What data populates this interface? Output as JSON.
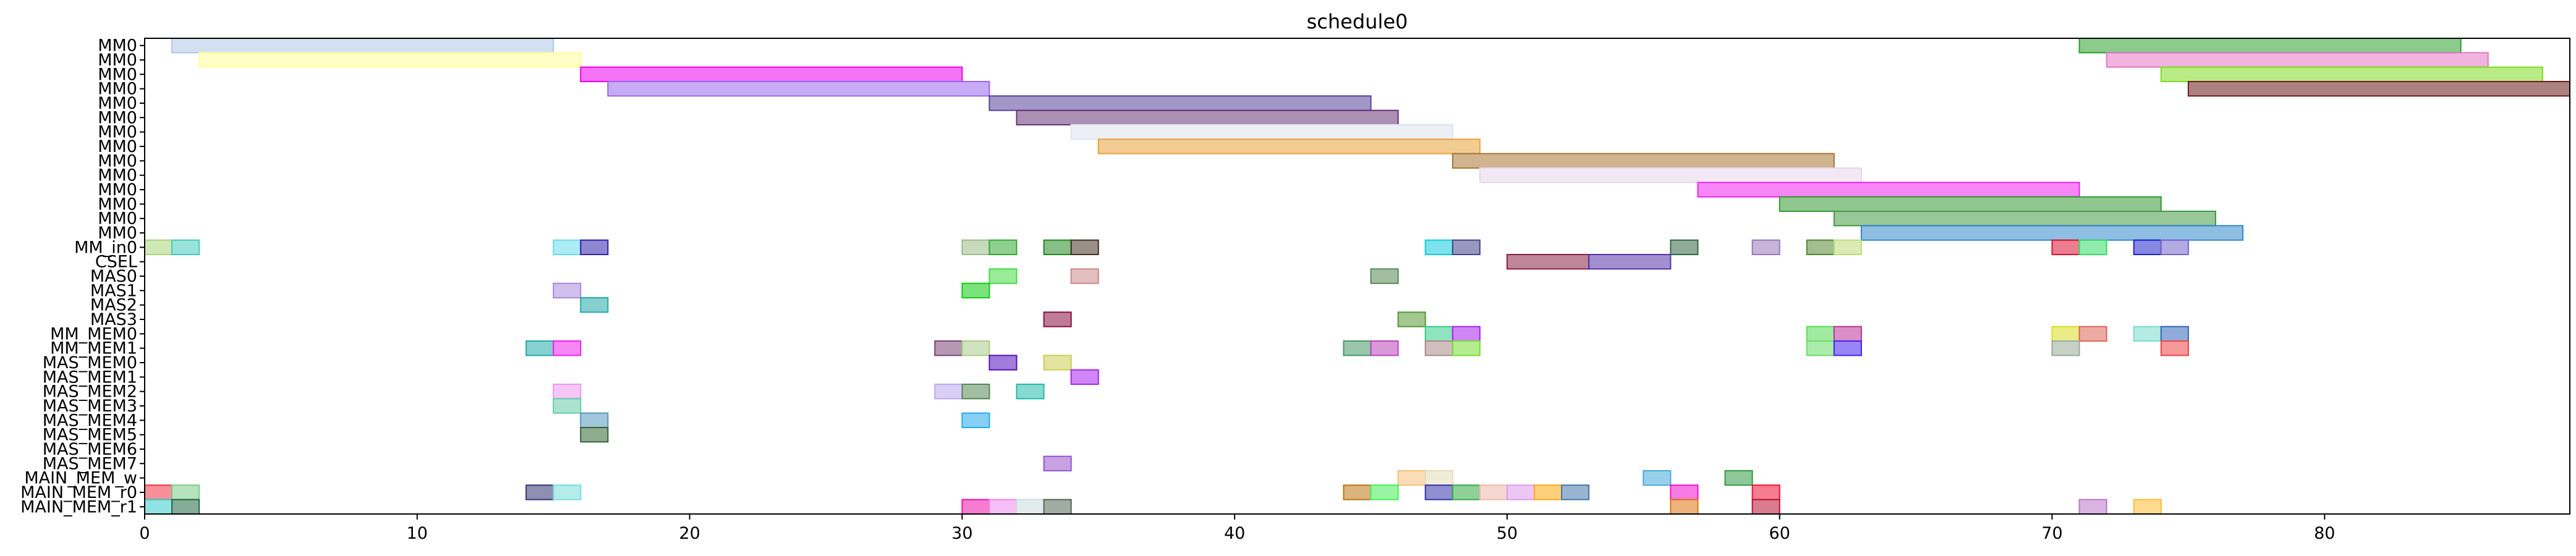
{
  "chart_data": {
    "type": "gantt",
    "title": "schedule0",
    "xlim": [
      0,
      89
    ],
    "xticks": [
      0,
      10,
      20,
      30,
      40,
      50,
      60,
      70,
      80
    ],
    "rows": [
      "MM0",
      "MM0",
      "MM0",
      "MM0",
      "MM0",
      "MM0",
      "MM0",
      "MM0",
      "MM0",
      "MM0",
      "MM0",
      "MM0",
      "MM0",
      "MM0",
      "MM_in0",
      "CSEL",
      "MAS0",
      "MAS1",
      "MAS2",
      "MAS3",
      "MM_MEM0",
      "MM_MEM1",
      "MAS_MEM0",
      "MAS_MEM1",
      "MAS_MEM2",
      "MAS_MEM3",
      "MAS_MEM4",
      "MAS_MEM5",
      "MAS_MEM6",
      "MAS_MEM7",
      "MAIN_MEM_w",
      "MAIN_MEM_r0",
      "MAIN_MEM_r1"
    ],
    "bars": [
      {
        "row": 0,
        "start": 1,
        "end": 15,
        "color": "#aec7e8"
      },
      {
        "row": 0,
        "start": 71,
        "end": 85,
        "color": "#2ca02c"
      },
      {
        "row": 1,
        "start": 2,
        "end": 16,
        "color": "#ffff99"
      },
      {
        "row": 1,
        "start": 72,
        "end": 86,
        "color": "#e377c2"
      },
      {
        "row": 2,
        "start": 16,
        "end": 30,
        "color": "#ee00ee"
      },
      {
        "row": 2,
        "start": 74,
        "end": 88,
        "color": "#7fdd22"
      },
      {
        "row": 3,
        "start": 17,
        "end": 31,
        "color": "#9966ee"
      },
      {
        "row": 3,
        "start": 75,
        "end": 89,
        "color": "#6b1a1a"
      },
      {
        "row": 4,
        "start": 31,
        "end": 45,
        "color": "#554499"
      },
      {
        "row": 5,
        "start": 32,
        "end": 46,
        "color": "#663377"
      },
      {
        "row": 6,
        "start": 34,
        "end": 48,
        "color": "#dde4ee"
      },
      {
        "row": 7,
        "start": 35,
        "end": 49,
        "color": "#e8a33a"
      },
      {
        "row": 8,
        "start": 48,
        "end": 62,
        "color": "#aa7733"
      },
      {
        "row": 9,
        "start": 49,
        "end": 63,
        "color": "#e6d5ea"
      },
      {
        "row": 10,
        "start": 57,
        "end": 71,
        "color": "#ee22ee"
      },
      {
        "row": 11,
        "start": 60,
        "end": 74,
        "color": "#339933"
      },
      {
        "row": 12,
        "start": 62,
        "end": 76,
        "color": "#449944"
      },
      {
        "row": 13,
        "start": 63,
        "end": 77,
        "color": "#3388cc"
      },
      {
        "row": 14,
        "start": 0,
        "end": 1,
        "color": "#aad577"
      },
      {
        "row": 14,
        "start": 1,
        "end": 2,
        "color": "#44ccbb"
      },
      {
        "row": 14,
        "start": 15,
        "end": 16,
        "color": "#66ddee"
      },
      {
        "row": 14,
        "start": 16,
        "end": 17,
        "color": "#3322aa"
      },
      {
        "row": 14,
        "start": 30,
        "end": 31,
        "color": "#99bb88"
      },
      {
        "row": 14,
        "start": 31,
        "end": 32,
        "color": "#33aa33"
      },
      {
        "row": 14,
        "start": 33,
        "end": 34,
        "color": "#228822"
      },
      {
        "row": 14,
        "start": 34,
        "end": 35,
        "color": "#443322"
      },
      {
        "row": 14,
        "start": 47,
        "end": 48,
        "color": "#11ccdd"
      },
      {
        "row": 14,
        "start": 48,
        "end": 49,
        "color": "#444488"
      },
      {
        "row": 14,
        "start": 56,
        "end": 57,
        "color": "#336644"
      },
      {
        "row": 14,
        "start": 59,
        "end": 60,
        "color": "#9977bb"
      },
      {
        "row": 14,
        "start": 61,
        "end": 62,
        "color": "#558833"
      },
      {
        "row": 14,
        "start": 62,
        "end": 63,
        "color": "#bbdd77"
      },
      {
        "row": 14,
        "start": 70,
        "end": 71,
        "color": "#dd1133"
      },
      {
        "row": 14,
        "start": 71,
        "end": 72,
        "color": "#33dd66"
      },
      {
        "row": 14,
        "start": 73,
        "end": 74,
        "color": "#2222cc"
      },
      {
        "row": 14,
        "start": 74,
        "end": 75,
        "color": "#7766cc"
      },
      {
        "row": 15,
        "start": 50,
        "end": 53,
        "color": "#882244"
      },
      {
        "row": 15,
        "start": 53,
        "end": 56,
        "color": "#5533aa"
      },
      {
        "row": 16,
        "start": 31,
        "end": 32,
        "color": "#44dd44"
      },
      {
        "row": 16,
        "start": 34,
        "end": 35,
        "color": "#cc8888"
      },
      {
        "row": 16,
        "start": 45,
        "end": 46,
        "color": "#558855"
      },
      {
        "row": 17,
        "start": 15,
        "end": 16,
        "color": "#aa88dd"
      },
      {
        "row": 17,
        "start": 30,
        "end": 31,
        "color": "#11cc11"
      },
      {
        "row": 18,
        "start": 16,
        "end": 17,
        "color": "#22aaaa"
      },
      {
        "row": 19,
        "start": 33,
        "end": 34,
        "color": "#881144"
      },
      {
        "row": 19,
        "start": 46,
        "end": 47,
        "color": "#559933"
      },
      {
        "row": 20,
        "start": 47,
        "end": 48,
        "color": "#33cc88"
      },
      {
        "row": 20,
        "start": 48,
        "end": 49,
        "color": "#aa22ee"
      },
      {
        "row": 20,
        "start": 61,
        "end": 62,
        "color": "#55dd55"
      },
      {
        "row": 20,
        "start": 62,
        "end": 63,
        "color": "#bb3399"
      },
      {
        "row": 20,
        "start": 70,
        "end": 71,
        "color": "#dddd22"
      },
      {
        "row": 20,
        "start": 71,
        "end": 72,
        "color": "#dd6655"
      },
      {
        "row": 20,
        "start": 73,
        "end": 74,
        "color": "#77ddcc"
      },
      {
        "row": 20,
        "start": 74,
        "end": 75,
        "color": "#3366bb"
      },
      {
        "row": 21,
        "start": 14,
        "end": 15,
        "color": "#22aaaa"
      },
      {
        "row": 21,
        "start": 15,
        "end": 16,
        "color": "#ee22ee"
      },
      {
        "row": 21,
        "start": 29,
        "end": 30,
        "color": "#774477"
      },
      {
        "row": 21,
        "start": 30,
        "end": 31,
        "color": "#aacc88"
      },
      {
        "row": 21,
        "start": 44,
        "end": 45,
        "color": "#449966"
      },
      {
        "row": 21,
        "start": 45,
        "end": 46,
        "color": "#bb44bb"
      },
      {
        "row": 21,
        "start": 47,
        "end": 48,
        "color": "#aa8888"
      },
      {
        "row": 21,
        "start": 48,
        "end": 49,
        "color": "#77dd33"
      },
      {
        "row": 21,
        "start": 61,
        "end": 62,
        "color": "#66dd66"
      },
      {
        "row": 21,
        "start": 62,
        "end": 63,
        "color": "#4422ee"
      },
      {
        "row": 21,
        "start": 70,
        "end": 71,
        "color": "#99aa99"
      },
      {
        "row": 21,
        "start": 74,
        "end": 75,
        "color": "#ee4444"
      },
      {
        "row": 22,
        "start": 31,
        "end": 32,
        "color": "#5511bb"
      },
      {
        "row": 22,
        "start": 33,
        "end": 34,
        "color": "#cccc55"
      },
      {
        "row": 23,
        "start": 34,
        "end": 35,
        "color": "#aa22ee"
      },
      {
        "row": 24,
        "start": 15,
        "end": 16,
        "color": "#ee99ee"
      },
      {
        "row": 24,
        "start": 29,
        "end": 30,
        "color": "#bbaaee"
      },
      {
        "row": 24,
        "start": 30,
        "end": 31,
        "color": "#558855"
      },
      {
        "row": 24,
        "start": 32,
        "end": 33,
        "color": "#22bbaa"
      },
      {
        "row": 25,
        "start": 15,
        "end": 16,
        "color": "#66ccaa"
      },
      {
        "row": 26,
        "start": 16,
        "end": 17,
        "color": "#5599bb"
      },
      {
        "row": 26,
        "start": 30,
        "end": 31,
        "color": "#22aaee"
      },
      {
        "row": 27,
        "start": 16,
        "end": 17,
        "color": "#336633"
      },
      {
        "row": 29,
        "start": 33,
        "end": 34,
        "color": "#9955cc"
      },
      {
        "row": 30,
        "start": 46,
        "end": 47,
        "color": "#f5c07a"
      },
      {
        "row": 30,
        "start": 47,
        "end": 48,
        "color": "#e6dcb8"
      },
      {
        "row": 30,
        "start": 55,
        "end": 56,
        "color": "#44aadd"
      },
      {
        "row": 30,
        "start": 58,
        "end": 59,
        "color": "#339944"
      },
      {
        "row": 31,
        "start": 0,
        "end": 1,
        "color": "#ee3344"
      },
      {
        "row": 31,
        "start": 1,
        "end": 2,
        "color": "#77cc88"
      },
      {
        "row": 31,
        "start": 14,
        "end": 15,
        "color": "#333377"
      },
      {
        "row": 31,
        "start": 15,
        "end": 16,
        "color": "#77dddd"
      },
      {
        "row": 31,
        "start": 44,
        "end": 45,
        "color": "#bb7711"
      },
      {
        "row": 31,
        "start": 45,
        "end": 46,
        "color": "#44ee55"
      },
      {
        "row": 31,
        "start": 47,
        "end": 48,
        "color": "#3333aa"
      },
      {
        "row": 31,
        "start": 48,
        "end": 49,
        "color": "#33aa44"
      },
      {
        "row": 31,
        "start": 49,
        "end": 50,
        "color": "#eeb8aa"
      },
      {
        "row": 31,
        "start": 50,
        "end": 51,
        "color": "#dd99ee"
      },
      {
        "row": 31,
        "start": 51,
        "end": 52,
        "color": "#ffaa11"
      },
      {
        "row": 31,
        "start": 52,
        "end": 53,
        "color": "#4477aa"
      },
      {
        "row": 31,
        "start": 56,
        "end": 57,
        "color": "#ee11cc"
      },
      {
        "row": 31,
        "start": 59,
        "end": 60,
        "color": "#ee1133"
      },
      {
        "row": 32,
        "start": 0,
        "end": 1,
        "color": "#33cccc"
      },
      {
        "row": 32,
        "start": 1,
        "end": 2,
        "color": "#226644"
      },
      {
        "row": 32,
        "start": 30,
        "end": 31,
        "color": "#ee11aa"
      },
      {
        "row": 32,
        "start": 31,
        "end": 32,
        "color": "#ee88ee"
      },
      {
        "row": 32,
        "start": 32,
        "end": 33,
        "color": "#ccdddd"
      },
      {
        "row": 32,
        "start": 33,
        "end": 34,
        "color": "#556655"
      },
      {
        "row": 32,
        "start": 56,
        "end": 57,
        "color": "#dd7711"
      },
      {
        "row": 32,
        "start": 59,
        "end": 60,
        "color": "#bb1133"
      },
      {
        "row": 32,
        "start": 71,
        "end": 72,
        "color": "#bb77cc"
      },
      {
        "row": 32,
        "start": 73,
        "end": 74,
        "color": "#ffbb33"
      }
    ]
  }
}
